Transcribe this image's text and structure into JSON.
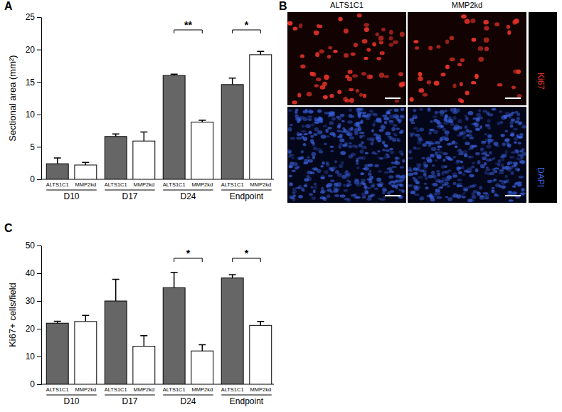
{
  "chart_data": [
    {
      "type": "bar",
      "title": "A",
      "y_label": "Sectional area (mm²)",
      "categories": [
        "D10",
        "D17",
        "D24",
        "Endpoint"
      ],
      "series": [
        {
          "name": "ALTS1C1",
          "color": "#666666",
          "values": [
            2.4,
            6.6,
            16.0,
            14.6
          ],
          "errors": [
            0.9,
            0.4,
            0.2,
            1.0
          ]
        },
        {
          "name": "MMP2kd",
          "color": "#ffffff",
          "values": [
            2.2,
            5.9,
            8.8,
            19.2
          ],
          "errors": [
            0.4,
            1.4,
            0.3,
            0.5
          ]
        }
      ],
      "ylim": [
        0,
        25
      ],
      "yticks": [
        0,
        5,
        10,
        15,
        20,
        25
      ],
      "annotations": [
        {
          "category": "D24",
          "text": "**"
        },
        {
          "category": "Endpoint",
          "text": "*"
        }
      ]
    },
    {
      "type": "bar",
      "title": "C",
      "y_label": "Ki67+ cells/field",
      "categories": [
        "D10",
        "D17",
        "D24",
        "Endpoint"
      ],
      "series": [
        {
          "name": "ALTS1C1",
          "color": "#666666",
          "values": [
            22.0,
            30.0,
            34.8,
            38.3
          ],
          "errors": [
            0.7,
            7.8,
            5.5,
            1.2
          ]
        },
        {
          "name": "MMP2kd",
          "color": "#ffffff",
          "values": [
            22.6,
            13.7,
            12.0,
            21.2
          ],
          "errors": [
            2.2,
            3.8,
            2.2,
            1.4
          ]
        }
      ],
      "ylim": [
        0,
        50
      ],
      "yticks": [
        0,
        10,
        20,
        30,
        40,
        50
      ],
      "annotations": [
        {
          "category": "D24",
          "text": "*"
        },
        {
          "category": "Endpoint",
          "text": "*"
        }
      ]
    }
  ],
  "image_panel": {
    "title": "B",
    "columns": [
      "ALTS1C1",
      "MMP2kd"
    ],
    "rows": [
      {
        "label": "Ki67",
        "color": "#e8332a"
      },
      {
        "label": "DAPI",
        "color": "#3a63e0"
      }
    ]
  }
}
